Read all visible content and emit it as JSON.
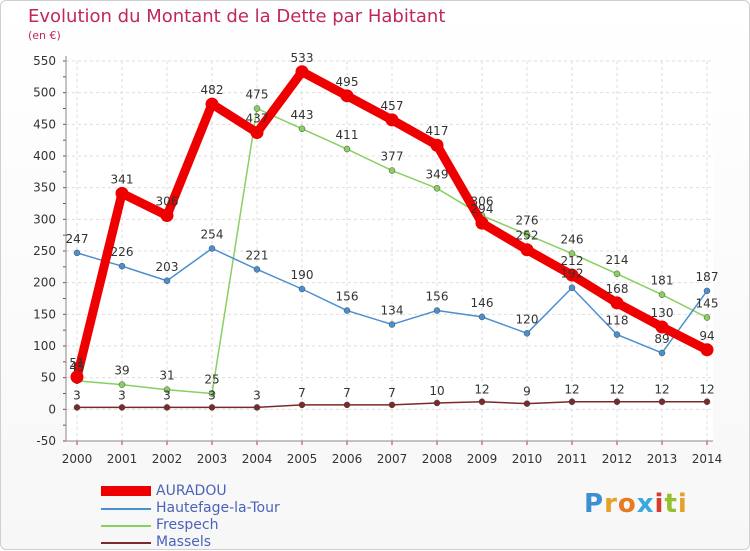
{
  "chart_data": {
    "type": "line",
    "title": "Evolution du Montant de la Dette par Habitant",
    "subtitle": "(en €)",
    "x": [
      "2000",
      "2001",
      "2002",
      "2003",
      "2004",
      "2005",
      "2006",
      "2007",
      "2008",
      "2009",
      "2010",
      "2011",
      "2012",
      "2013",
      "2014"
    ],
    "yticks": [
      -50,
      0,
      50,
      100,
      150,
      200,
      250,
      300,
      350,
      400,
      450,
      500,
      550
    ],
    "ylim": [
      -50,
      550
    ],
    "grid": true,
    "legend_placement": "bottom-left",
    "series": [
      {
        "name": "AURADOU",
        "color": "#ee0000",
        "values": [
          51,
          341,
          306,
          482,
          437,
          533,
          495,
          457,
          417,
          294,
          252,
          212,
          168,
          130,
          94
        ],
        "labels": [
          "51",
          "341",
          "306",
          "482",
          "437",
          "533",
          "495",
          "457",
          "417",
          "294",
          "252",
          "212",
          "168",
          "130",
          "94"
        ]
      },
      {
        "name": "Hautefage-la-Tour",
        "color": "#4a90d0",
        "values": [
          247,
          226,
          203,
          254,
          221,
          190,
          156,
          134,
          156,
          146,
          120,
          192,
          118,
          89,
          187
        ],
        "labels": [
          "247",
          "226",
          "203",
          "254",
          "221",
          "190",
          "156",
          "134",
          "156",
          "146",
          "120",
          "192",
          "118",
          "89",
          "187"
        ]
      },
      {
        "name": "Frespech",
        "color": "#88d060",
        "values": [
          45,
          39,
          31,
          25,
          475,
          443,
          411,
          377,
          349,
          306,
          276,
          246,
          214,
          181,
          145
        ],
        "labels": [
          "45",
          "39",
          "31",
          "25",
          "475",
          "443",
          "411",
          "377",
          "349",
          "306",
          "276",
          "246",
          "214",
          "181",
          "145"
        ]
      },
      {
        "name": "Massels",
        "color": "#7a2a2a",
        "values": [
          3,
          3,
          3,
          3,
          3,
          7,
          7,
          7,
          10,
          12,
          9,
          12,
          12,
          12,
          12
        ],
        "labels": [
          "3",
          "3",
          "3",
          "3",
          "3",
          "7",
          "7",
          "7",
          "10",
          "12",
          "9",
          "12",
          "12",
          "12",
          "12"
        ]
      }
    ]
  },
  "logo": {
    "letters": [
      "P",
      "r",
      "o",
      "x",
      "i",
      "t",
      "i"
    ]
  }
}
